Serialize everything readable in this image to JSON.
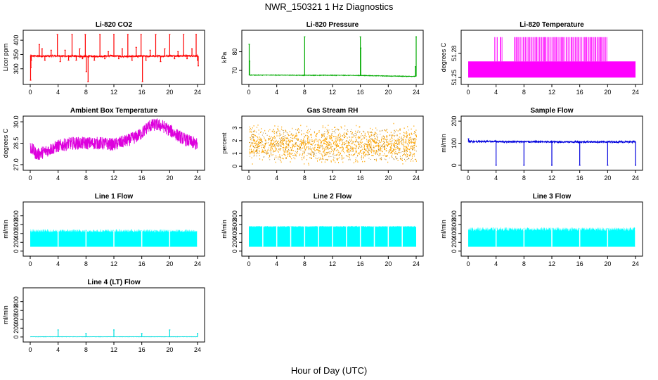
{
  "figure": {
    "title": "NWR_150321 1 Hz Diagnostics",
    "xlabel": "Hour of Day (UTC)"
  },
  "chart_data": [
    {
      "type": "line",
      "title": "Li-820 CO2",
      "xlabel": "",
      "ylabel": "Licor ppm",
      "color": "#ff0000",
      "xlim": [
        0,
        24
      ],
      "xticks": [
        0,
        4,
        8,
        12,
        16,
        20,
        24
      ],
      "ylim": [
        255,
        425
      ],
      "yticks": [
        300,
        350,
        400
      ],
      "series": [
        {
          "base": [
            [
              0,
              345
            ],
            [
              2,
              344
            ],
            [
              4,
              345
            ],
            [
              6,
              344
            ],
            [
              8,
              343
            ],
            [
              10,
              344
            ],
            [
              12,
              345
            ],
            [
              14,
              343
            ],
            [
              16,
              344
            ],
            [
              18,
              344
            ],
            [
              20,
              345
            ],
            [
              22,
              345
            ],
            [
              24,
              345
            ]
          ],
          "noise": 3,
          "spikes": [
            [
              0.05,
              260
            ],
            [
              0.1,
              305
            ],
            [
              0.15,
              330
            ],
            [
              1.3,
              385
            ],
            [
              1.7,
              370
            ],
            [
              2.1,
              330
            ],
            [
              3.0,
              365
            ],
            [
              3.9,
              420
            ],
            [
              4.3,
              325
            ],
            [
              5.0,
              365
            ],
            [
              5.5,
              330
            ],
            [
              6.0,
              420
            ],
            [
              6.6,
              330
            ],
            [
              7.1,
              370
            ],
            [
              7.5,
              335
            ],
            [
              7.9,
              420
            ],
            [
              8.05,
              290
            ],
            [
              8.3,
              255
            ],
            [
              9.2,
              330
            ],
            [
              10.0,
              420
            ],
            [
              10.7,
              335
            ],
            [
              11.2,
              360
            ],
            [
              12.0,
              420
            ],
            [
              12.7,
              335
            ],
            [
              13.2,
              370
            ],
            [
              14.0,
              420
            ],
            [
              14.6,
              330
            ],
            [
              15.2,
              375
            ],
            [
              15.9,
              420
            ],
            [
              16.1,
              255
            ],
            [
              16.6,
              330
            ],
            [
              17.2,
              365
            ],
            [
              18.0,
              420
            ],
            [
              18.7,
              325
            ],
            [
              19.3,
              370
            ],
            [
              20.0,
              420
            ],
            [
              20.7,
              335
            ],
            [
              21.2,
              360
            ],
            [
              22.0,
              420
            ],
            [
              22.5,
              335
            ],
            [
              23.2,
              370
            ],
            [
              23.8,
              420
            ],
            [
              24.0,
              330
            ],
            [
              24.1,
              310
            ]
          ]
        }
      ]
    },
    {
      "type": "line",
      "title": "Li-820 Pressure",
      "xlabel": "",
      "ylabel": "kPa",
      "color": "#00aa00",
      "xlim": [
        0,
        24
      ],
      "xticks": [
        0,
        4,
        8,
        12,
        16,
        20,
        24
      ],
      "ylim": [
        64,
        90
      ],
      "yticks": [
        70,
        80
      ],
      "series": [
        {
          "base": [
            [
              0,
              67.5
            ],
            [
              4,
              67.5
            ],
            [
              8,
              67.4
            ],
            [
              12,
              67.4
            ],
            [
              16,
              67.3
            ],
            [
              20,
              67.0
            ],
            [
              24,
              66.8
            ]
          ],
          "noise": 0.15,
          "spikes": [
            [
              0.05,
              84
            ],
            [
              0.1,
              75
            ],
            [
              8.0,
              88
            ],
            [
              16.0,
              88
            ],
            [
              16.05,
              82
            ],
            [
              24.0,
              88
            ],
            [
              23.9,
              72
            ]
          ]
        }
      ]
    },
    {
      "type": "band",
      "title": "Li-820 Temperature",
      "xlabel": "",
      "ylabel": "degrees C",
      "color": "#ff00ff",
      "xlim": [
        0,
        24
      ],
      "xticks": [
        0,
        4,
        8,
        12,
        16,
        20,
        24
      ],
      "ylim": [
        51.245,
        51.305
      ],
      "yticks": [
        51.25,
        51.28
      ],
      "series": [
        {
          "low": 51.25,
          "high": 51.27,
          "spike_to": 51.3,
          "spike_ranges": [
            [
              3.8,
              4.2
            ],
            [
              4.6,
              5.0
            ],
            [
              6.6,
              20.0
            ]
          ]
        }
      ]
    },
    {
      "type": "line",
      "title": "Ambient Box Temperature",
      "xlabel": "",
      "ylabel": "degrees C",
      "color": "#dd00dd",
      "xlim": [
        0,
        24
      ],
      "xticks": [
        0,
        4,
        8,
        12,
        16,
        20,
        24
      ],
      "ylim": [
        26.8,
        30.2
      ],
      "yticks": [
        27.0,
        28.5,
        30.0
      ],
      "series": [
        {
          "base": [
            [
              0,
              28.2
            ],
            [
              1,
              27.7
            ],
            [
              2,
              27.9
            ],
            [
              4,
              28.3
            ],
            [
              6,
              28.5
            ],
            [
              8,
              28.5
            ],
            [
              10,
              28.5
            ],
            [
              12,
              28.4
            ],
            [
              14,
              28.7
            ],
            [
              15,
              28.9
            ],
            [
              16,
              29.2
            ],
            [
              17,
              29.7
            ],
            [
              18,
              29.8
            ],
            [
              19,
              29.7
            ],
            [
              20,
              29.4
            ],
            [
              22,
              28.8
            ],
            [
              24,
              28.4
            ]
          ],
          "noise": 0.45
        }
      ]
    },
    {
      "type": "scatter",
      "title": "Gas Stream RH",
      "xlabel": "",
      "ylabel": "percent",
      "color": "#ffa500",
      "color2": "#996600",
      "xlim": [
        0,
        24
      ],
      "xticks": [
        0,
        4,
        8,
        12,
        16,
        20,
        24
      ],
      "ylim": [
        -0.1,
        3.7
      ],
      "yticks": [
        0,
        1,
        2,
        3
      ],
      "series": [
        {
          "center": 1.7,
          "spread": 1.5,
          "max": 3.6,
          "min": 0.1
        }
      ]
    },
    {
      "type": "line",
      "title": "Sample Flow",
      "xlabel": "",
      "ylabel": "ml/min",
      "color": "#0000dd",
      "xlim": [
        0,
        24
      ],
      "xticks": [
        0,
        4,
        8,
        12,
        16,
        20,
        24
      ],
      "ylim": [
        -10,
        210
      ],
      "yticks": [
        0,
        100,
        200
      ],
      "series": [
        {
          "base": [
            [
              0,
              108
            ],
            [
              12,
              106
            ],
            [
              24,
              106
            ]
          ],
          "noise": 4,
          "spikes": [
            [
              0.05,
              120
            ],
            [
              4.0,
              0
            ],
            [
              8.0,
              0
            ],
            [
              12.0,
              0
            ],
            [
              16.0,
              0
            ],
            [
              20.0,
              0
            ],
            [
              24.0,
              0
            ]
          ]
        }
      ]
    },
    {
      "type": "band",
      "title": "Line 1 Flow",
      "xlabel": "",
      "ylabel": "ml/min",
      "color": "#00ffff",
      "xlim": [
        0,
        24
      ],
      "xticks": [
        0,
        4,
        8,
        12,
        16,
        20,
        24
      ],
      "ylim": [
        -50,
        1050
      ],
      "yticks": [
        0,
        200,
        400,
        600,
        800
      ],
      "series": [
        {
          "low": 100,
          "high": 460,
          "jitter": 40,
          "gaps": [
            4.0,
            8.0,
            12.0,
            16.0,
            20.0,
            24.0
          ]
        }
      ]
    },
    {
      "type": "band",
      "title": "Line 2 Flow",
      "xlabel": "",
      "ylabel": "ml/min",
      "color": "#00ffff",
      "xlim": [
        0,
        24
      ],
      "xticks": [
        0,
        4,
        8,
        12,
        16,
        20,
        24
      ],
      "ylim": [
        -50,
        1050
      ],
      "yticks": [
        0,
        200,
        400,
        600,
        800
      ],
      "series": [
        {
          "low": 100,
          "high": 560,
          "jitter": 15,
          "gaps": [
            2.0,
            4.0,
            6.0,
            8.0,
            10.0,
            12.0,
            14.0,
            16.0,
            18.0,
            20.0,
            22.0
          ]
        }
      ]
    },
    {
      "type": "band",
      "title": "Line 3 Flow",
      "xlabel": "",
      "ylabel": "ml/min",
      "color": "#00ffff",
      "xlim": [
        0,
        24
      ],
      "xticks": [
        0,
        4,
        8,
        12,
        16,
        20,
        24
      ],
      "ylim": [
        -50,
        1050
      ],
      "yticks": [
        0,
        200,
        400,
        600,
        800
      ],
      "series": [
        {
          "low": 100,
          "high": 500,
          "jitter": 45,
          "gaps": [
            4.0,
            8.0,
            12.0,
            16.0,
            20.0,
            24.0
          ]
        }
      ]
    },
    {
      "type": "line",
      "title": "Line 4 (LT) Flow",
      "xlabel": "",
      "ylabel": "ml/min",
      "color": "#00dddd",
      "xlim": [
        0,
        24
      ],
      "xticks": [
        0,
        4,
        8,
        12,
        16,
        20,
        24
      ],
      "ylim": [
        -50,
        1050
      ],
      "yticks": [
        0,
        200,
        400,
        600,
        800
      ],
      "series": [
        {
          "base": [
            [
              0,
              5
            ],
            [
              24,
              5
            ]
          ],
          "noise": 3,
          "spikes": [
            [
              4.0,
              160
            ],
            [
              8.0,
              80
            ],
            [
              12.0,
              160
            ],
            [
              16.0,
              80
            ],
            [
              20.0,
              160
            ],
            [
              24.0,
              80
            ]
          ]
        }
      ]
    }
  ]
}
